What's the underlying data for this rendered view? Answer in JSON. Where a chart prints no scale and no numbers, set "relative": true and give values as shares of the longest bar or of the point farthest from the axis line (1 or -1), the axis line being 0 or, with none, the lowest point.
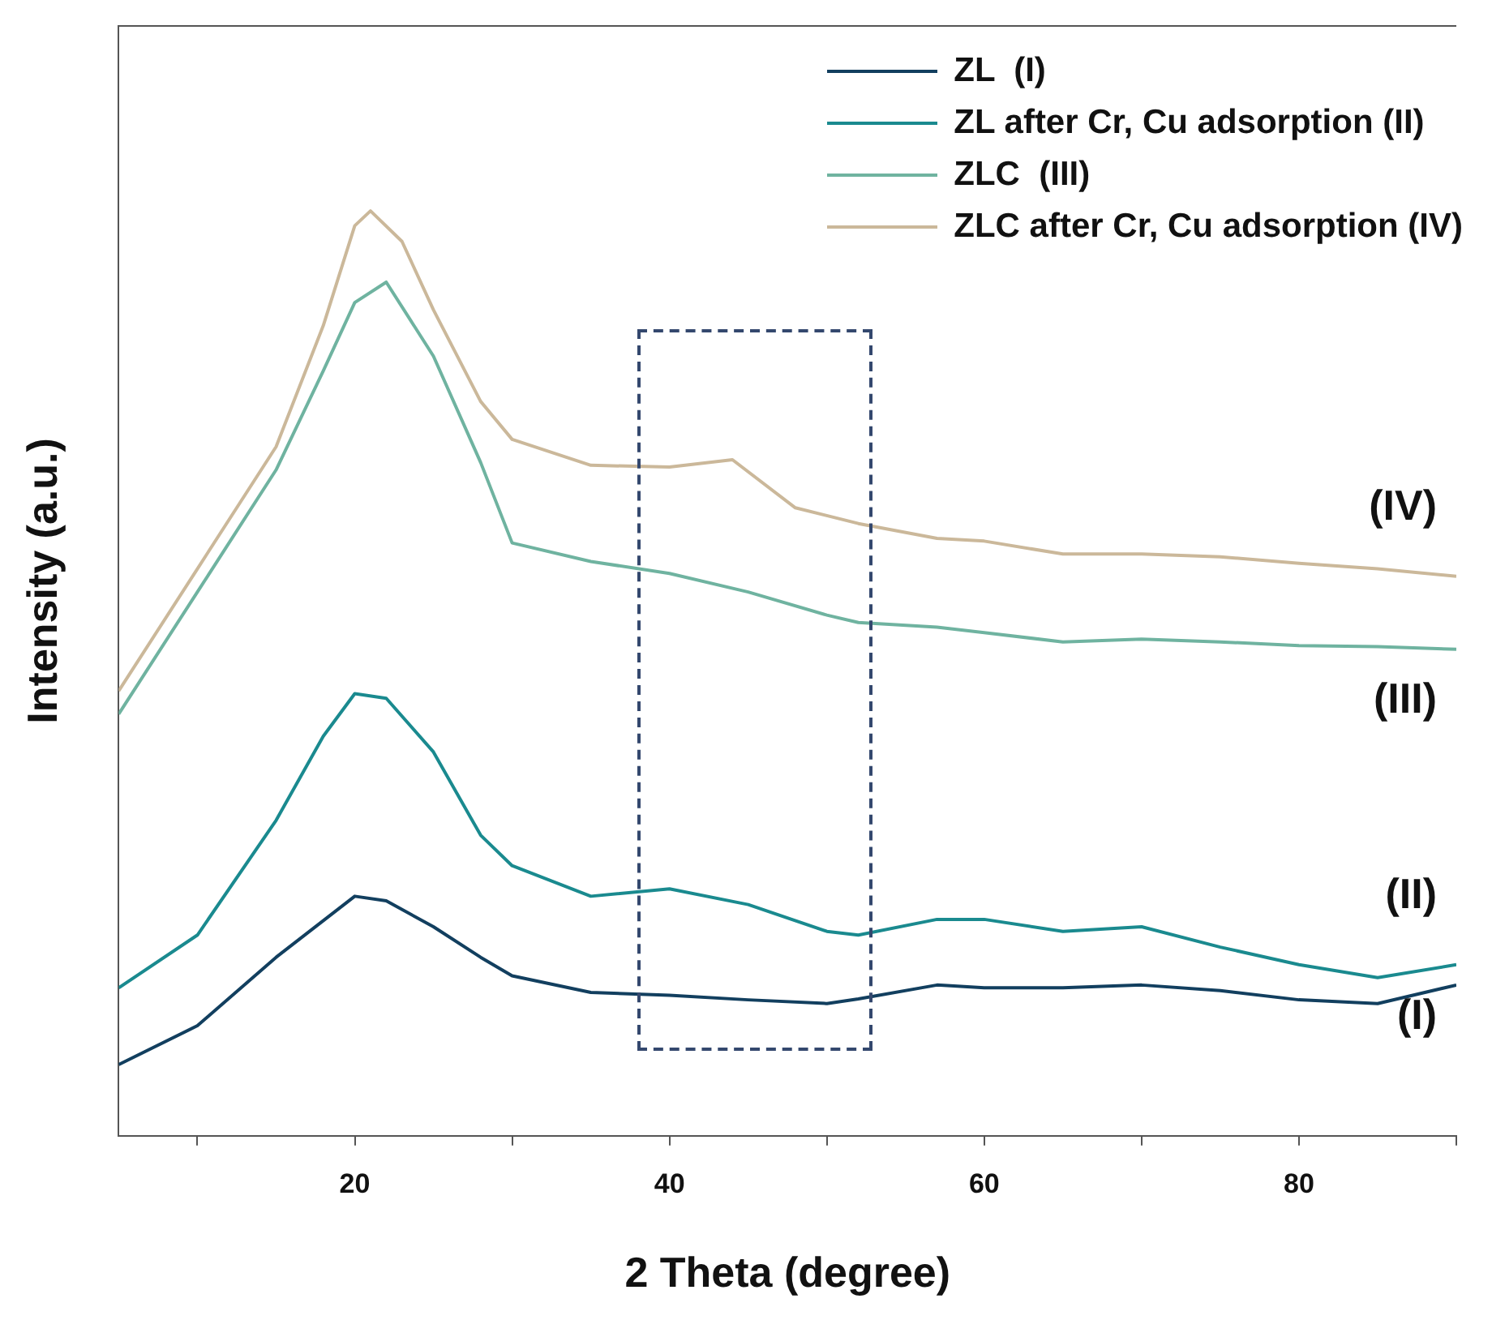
{
  "chart_data": {
    "type": "line",
    "relative": true,
    "xlabel": "2 Theta (degree)",
    "ylabel": "Intensity (a.u.)",
    "xlim": [
      5,
      90
    ],
    "xticks": [
      {
        "value": 10,
        "label": null
      },
      20,
      {
        "value": 30,
        "label": null
      },
      40,
      {
        "value": 50,
        "label": null
      },
      60,
      {
        "value": 70,
        "label": null
      },
      80,
      {
        "value": 90,
        "label": null
      }
    ],
    "legend": "top right",
    "grid": false,
    "marker": "none",
    "line_style": "solid",
    "series": [
      {
        "name": "ZL  (I)",
        "color": "#123f5f",
        "x": [
          5,
          10,
          15,
          20,
          22,
          25,
          28,
          30,
          35,
          40,
          45,
          50,
          52,
          57,
          60,
          65,
          70,
          75,
          80,
          85,
          90
        ],
        "values": [
          0.077,
          0.119,
          0.193,
          0.259,
          0.254,
          0.226,
          0.193,
          0.173,
          0.155,
          0.152,
          0.147,
          0.143,
          0.148,
          0.163,
          0.16,
          0.16,
          0.163,
          0.157,
          0.147,
          0.143,
          0.163
        ]
      },
      {
        "name": "ZL after Cr, Cu adsorption (II)",
        "color": "#1a8a8f",
        "x": [
          5,
          10,
          15,
          18,
          20,
          22,
          25,
          28,
          30,
          35,
          40,
          45,
          50,
          52,
          57,
          60,
          65,
          70,
          75,
          80,
          85,
          90
        ],
        "values": [
          0.16,
          0.217,
          0.341,
          0.432,
          0.478,
          0.473,
          0.415,
          0.325,
          0.292,
          0.259,
          0.267,
          0.25,
          0.221,
          0.217,
          0.234,
          0.234,
          0.221,
          0.226,
          0.204,
          0.185,
          0.171,
          0.185
        ]
      },
      {
        "name": "ZLC  (III)",
        "color": "#6fb3a0",
        "x": [
          5,
          10,
          15,
          18,
          20,
          22,
          25,
          28,
          30,
          35,
          40,
          45,
          50,
          52,
          57,
          60,
          65,
          70,
          75,
          80,
          85,
          90
        ],
        "values": [
          0.456,
          0.588,
          0.72,
          0.827,
          0.901,
          0.923,
          0.843,
          0.728,
          0.641,
          0.621,
          0.608,
          0.588,
          0.563,
          0.555,
          0.55,
          0.544,
          0.534,
          0.537,
          0.534,
          0.53,
          0.529,
          0.526
        ]
      },
      {
        "name": "ZLC after Cr, Cu adsorption (IV)",
        "color": "#cbb89a",
        "x": [
          5,
          10,
          15,
          18,
          20,
          21,
          23,
          25,
          28,
          30,
          35,
          40,
          44,
          48,
          52,
          57,
          60,
          65,
          70,
          75,
          80,
          85,
          90
        ],
        "values": [
          0.481,
          0.613,
          0.745,
          0.876,
          0.984,
          1,
          0.967,
          0.893,
          0.794,
          0.753,
          0.725,
          0.723,
          0.731,
          0.679,
          0.662,
          0.646,
          0.643,
          0.629,
          0.629,
          0.626,
          0.619,
          0.613,
          0.605
        ]
      }
    ],
    "annotations": [
      "(IV)",
      "(III)",
      "(II)",
      "(I)"
    ]
  }
}
